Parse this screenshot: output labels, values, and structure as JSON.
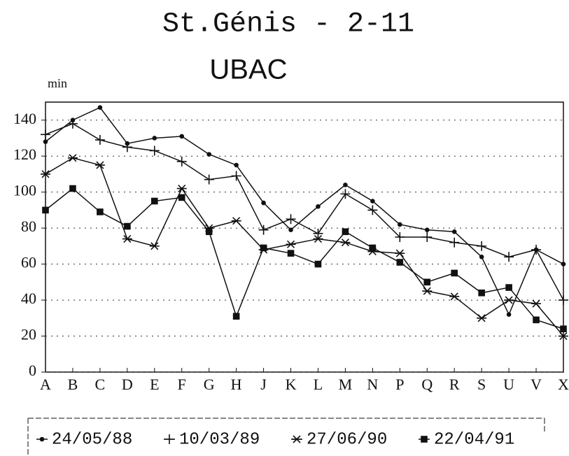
{
  "chart_data": {
    "type": "line",
    "title": "St.Génis - 2-11",
    "subtitle": "UBAC",
    "y_label": "min",
    "categories": [
      "A",
      "B",
      "C",
      "D",
      "E",
      "F",
      "G",
      "H",
      "J",
      "K",
      "L",
      "M",
      "N",
      "P",
      "Q",
      "R",
      "S",
      "U",
      "V",
      "X"
    ],
    "ylim": [
      0,
      150
    ],
    "yticks": [
      0,
      20,
      40,
      60,
      80,
      100,
      120,
      140
    ],
    "grid": true,
    "series": [
      {
        "name": "24/05/88",
        "color": "#111111",
        "marker": "dot",
        "values": [
          128,
          140,
          147,
          127,
          130,
          131,
          121,
          115,
          94,
          79,
          92,
          104,
          95,
          82,
          79,
          78,
          64,
          32,
          68,
          60
        ]
      },
      {
        "name": "10/03/89",
        "color": "#111111",
        "marker": "plus",
        "values": [
          132,
          138,
          129,
          125,
          123,
          117,
          107,
          109,
          79,
          85,
          77,
          99,
          90,
          75,
          75,
          72,
          70,
          64,
          68,
          40
        ]
      },
      {
        "name": "27/06/90",
        "color": "#111111",
        "marker": "star",
        "values": [
          110,
          119,
          115,
          74,
          70,
          102,
          80,
          84,
          68,
          71,
          74,
          72,
          67,
          66,
          45,
          42,
          30,
          40,
          38,
          20
        ]
      },
      {
        "name": "22/04/91",
        "color": "#111111",
        "marker": "square",
        "values": [
          90,
          102,
          89,
          81,
          95,
          97,
          78,
          31,
          69,
          66,
          60,
          78,
          69,
          61,
          50,
          55,
          44,
          47,
          29,
          24
        ]
      }
    ]
  }
}
